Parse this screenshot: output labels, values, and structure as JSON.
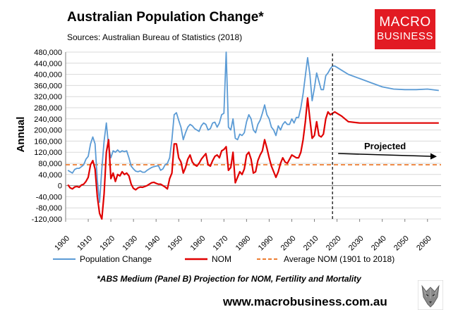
{
  "header": {
    "title": "Australian Population Change*",
    "source": "Sources: Australian Bureau of Statistics (2018)"
  },
  "logo": {
    "line1": "MACRO",
    "line2": "BUSINESS"
  },
  "footnote": "*ABS Medium (Panel B) Projection for NOM, Fertility and Mortality",
  "website": "www.macrobusiness.com.au",
  "colors": {
    "population": "#5b9bd5",
    "nom": "#e00000",
    "average": "#ed7d31",
    "brand": "#e21b23",
    "grid": "#d9d9d9"
  },
  "chart_data": {
    "type": "line",
    "title": "Australian Population Change*",
    "xlabel": "",
    "ylabel": "Annual",
    "xlim": [
      1900,
      2066
    ],
    "ylim": [
      -120000,
      480000
    ],
    "grid": true,
    "x_ticks": [
      1900,
      1910,
      1920,
      1930,
      1940,
      1950,
      1960,
      1970,
      1980,
      1990,
      2000,
      2010,
      2020,
      2030,
      2040,
      2050,
      2060
    ],
    "x_tick_labels": [
      "1900",
      "1910",
      "1920",
      "1930",
      "1940",
      "1950",
      "1960",
      "1970",
      "1980",
      "1990",
      "2000",
      "2010",
      "2020",
      "2030",
      "2040",
      "2050",
      "2060"
    ],
    "y_ticks": [
      -120000,
      -80000,
      -40000,
      0,
      40000,
      80000,
      120000,
      160000,
      200000,
      240000,
      280000,
      320000,
      360000,
      400000,
      440000,
      480000
    ],
    "y_tick_labels": [
      "-120,000",
      "-80,000",
      "-40,000",
      "0",
      "40,000",
      "80,000",
      "120,000",
      "160,000",
      "200,000",
      "240,000",
      "280,000",
      "320,000",
      "360,000",
      "400,000",
      "440,000",
      "480,000"
    ],
    "projection_start": 2018,
    "projection_label": "Projected",
    "series": [
      {
        "name": "Population Change",
        "x": [
          1901,
          1902,
          1903,
          1904,
          1905,
          1906,
          1907,
          1908,
          1909,
          1910,
          1911,
          1912,
          1913,
          1914,
          1915,
          1916,
          1917,
          1918,
          1919,
          1920,
          1921,
          1922,
          1923,
          1924,
          1925,
          1926,
          1927,
          1928,
          1929,
          1930,
          1931,
          1932,
          1933,
          1934,
          1935,
          1936,
          1937,
          1938,
          1939,
          1940,
          1941,
          1942,
          1943,
          1944,
          1945,
          1946,
          1947,
          1948,
          1949,
          1950,
          1951,
          1952,
          1953,
          1954,
          1955,
          1956,
          1957,
          1958,
          1959,
          1960,
          1961,
          1962,
          1963,
          1964,
          1965,
          1966,
          1967,
          1968,
          1969,
          1970,
          1971,
          1972,
          1973,
          1974,
          1975,
          1976,
          1977,
          1978,
          1979,
          1980,
          1981,
          1982,
          1983,
          1984,
          1985,
          1986,
          1987,
          1988,
          1989,
          1990,
          1991,
          1992,
          1993,
          1994,
          1995,
          1996,
          1997,
          1998,
          1999,
          2000,
          2001,
          2002,
          2003,
          2004,
          2005,
          2006,
          2007,
          2008,
          2009,
          2010,
          2011,
          2012,
          2013,
          2014,
          2015,
          2016,
          2017,
          2018,
          2019,
          2020,
          2022,
          2025,
          2030,
          2035,
          2040,
          2045,
          2050,
          2055,
          2060,
          2065
        ],
        "values": [
          55000,
          50000,
          45000,
          58000,
          62000,
          62000,
          68000,
          75000,
          95000,
          105000,
          150000,
          175000,
          150000,
          20000,
          -60000,
          60000,
          160000,
          225000,
          140000,
          100000,
          125000,
          120000,
          128000,
          120000,
          125000,
          122000,
          125000,
          100000,
          70000,
          60000,
          52000,
          50000,
          53000,
          48000,
          48000,
          55000,
          60000,
          65000,
          68000,
          70000,
          72000,
          55000,
          60000,
          75000,
          80000,
          100000,
          165000,
          255000,
          262000,
          235000,
          210000,
          165000,
          190000,
          210000,
          220000,
          215000,
          205000,
          200000,
          195000,
          215000,
          225000,
          220000,
          200000,
          205000,
          225000,
          228000,
          210000,
          225000,
          255000,
          260000,
          480000,
          210000,
          200000,
          240000,
          170000,
          165000,
          185000,
          180000,
          190000,
          230000,
          255000,
          240000,
          200000,
          190000,
          220000,
          235000,
          260000,
          290000,
          255000,
          240000,
          210000,
          200000,
          180000,
          215000,
          200000,
          220000,
          230000,
          220000,
          220000,
          240000,
          225000,
          245000,
          245000,
          280000,
          330000,
          395000,
          460000,
          400000,
          305000,
          350000,
          405000,
          375000,
          345000,
          345000,
          395000,
          405000,
          420000,
          430000,
          430000,
          425000,
          415000,
          400000,
          385000,
          370000,
          355000,
          347000,
          345000,
          345000,
          347000,
          342000
        ]
      },
      {
        "name": "NOM",
        "x": [
          1901,
          1902,
          1903,
          1904,
          1905,
          1906,
          1907,
          1908,
          1909,
          1910,
          1911,
          1912,
          1913,
          1914,
          1915,
          1916,
          1917,
          1918,
          1919,
          1920,
          1921,
          1922,
          1923,
          1924,
          1925,
          1926,
          1927,
          1928,
          1929,
          1930,
          1931,
          1932,
          1933,
          1934,
          1935,
          1936,
          1937,
          1938,
          1939,
          1940,
          1941,
          1942,
          1943,
          1944,
          1945,
          1946,
          1947,
          1948,
          1949,
          1950,
          1951,
          1952,
          1953,
          1954,
          1955,
          1956,
          1957,
          1958,
          1959,
          1960,
          1961,
          1962,
          1963,
          1964,
          1965,
          1966,
          1967,
          1968,
          1969,
          1970,
          1971,
          1972,
          1973,
          1974,
          1975,
          1976,
          1977,
          1978,
          1979,
          1980,
          1981,
          1982,
          1983,
          1984,
          1985,
          1986,
          1987,
          1988,
          1989,
          1990,
          1991,
          1992,
          1993,
          1994,
          1995,
          1996,
          1997,
          1998,
          1999,
          2000,
          2001,
          2002,
          2003,
          2004,
          2005,
          2006,
          2007,
          2008,
          2009,
          2010,
          2011,
          2012,
          2013,
          2014,
          2015,
          2016,
          2017,
          2018,
          2019,
          2020,
          2022,
          2025,
          2030,
          2040,
          2050,
          2065
        ],
        "values": [
          3000,
          -8000,
          -12000,
          -5000,
          -3000,
          -6000,
          2000,
          5000,
          15000,
          30000,
          75000,
          90000,
          60000,
          -40000,
          -100000,
          -120000,
          -30000,
          120000,
          165000,
          25000,
          45000,
          15000,
          40000,
          35000,
          50000,
          40000,
          45000,
          35000,
          5000,
          -10000,
          -15000,
          -8000,
          -5000,
          -6000,
          -3000,
          0,
          5000,
          10000,
          12000,
          8000,
          5000,
          5000,
          0,
          -5000,
          -12000,
          25000,
          45000,
          150000,
          150000,
          100000,
          85000,
          45000,
          65000,
          95000,
          110000,
          85000,
          75000,
          70000,
          80000,
          95000,
          105000,
          115000,
          75000,
          70000,
          90000,
          105000,
          110000,
          100000,
          125000,
          130000,
          140000,
          55000,
          65000,
          120000,
          10000,
          30000,
          50000,
          40000,
          60000,
          110000,
          120000,
          95000,
          45000,
          50000,
          90000,
          110000,
          125000,
          165000,
          135000,
          100000,
          70000,
          50000,
          30000,
          50000,
          80000,
          100000,
          85000,
          80000,
          95000,
          110000,
          105000,
          100000,
          100000,
          120000,
          165000,
          230000,
          315000,
          240000,
          170000,
          180000,
          230000,
          180000,
          175000,
          185000,
          240000,
          265000,
          255000,
          260000,
          265000,
          260000,
          250000,
          230000,
          225000,
          225000,
          225000,
          225000
        ]
      },
      {
        "name": "Average NOM (1901 to 2018)",
        "x": [
          1900,
          2066
        ],
        "values": [
          75000,
          75000
        ],
        "style": "dashed"
      }
    ],
    "legend": {
      "position": "bottom",
      "entries": [
        "Population Change",
        "NOM",
        "Average NOM (1901 to 2018)"
      ]
    }
  }
}
